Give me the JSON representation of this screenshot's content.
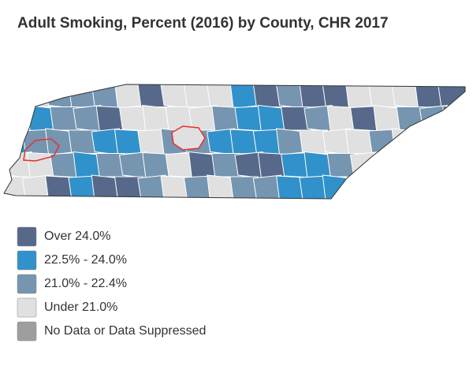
{
  "title": "Adult Smoking, Percent (2016) by County, CHR 2017",
  "legend": [
    {
      "label": "Over 24.0%",
      "color": "#56698a"
    },
    {
      "label": "22.5% - 24.0%",
      "color": "#3191cb"
    },
    {
      "label": "21.0% - 22.4%",
      "color": "#7595b0"
    },
    {
      "label": "Under 21.0%",
      "color": "#e0e0e0"
    },
    {
      "label": "No Data or Data Suppressed",
      "color": "#9e9e9e"
    }
  ]
}
